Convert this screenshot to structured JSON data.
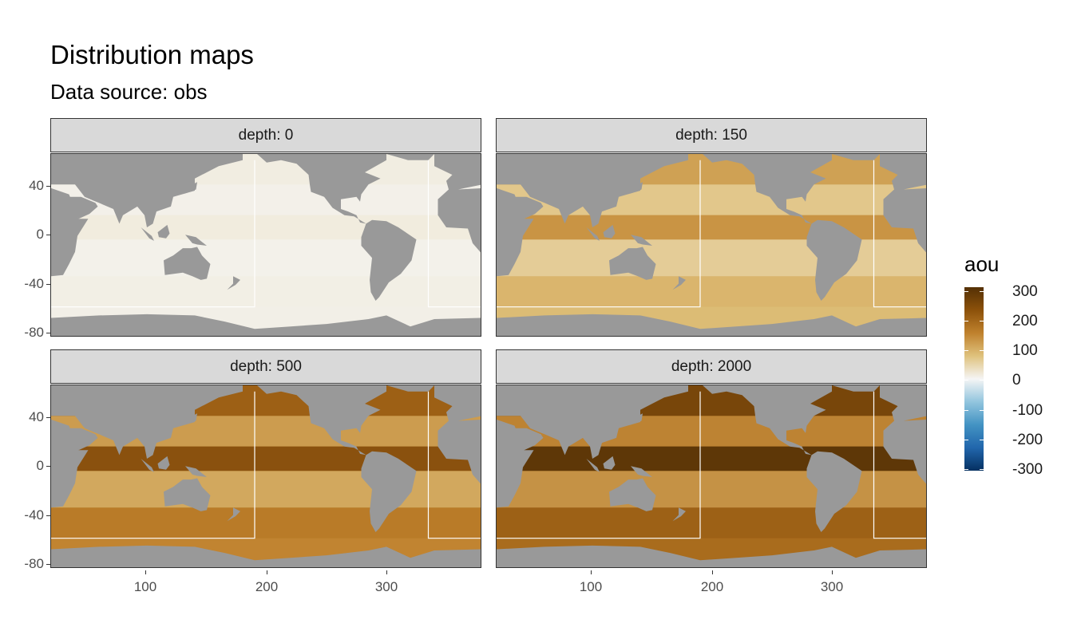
{
  "title": "Distribution maps",
  "subtitle": "Data source:  obs",
  "chart_data": {
    "type": "heatmap",
    "facet_variable": "depth",
    "panels": [
      {
        "strip": "depth: 0",
        "depth": 0,
        "typical_aou": 10
      },
      {
        "strip": "depth: 150",
        "depth": 150,
        "typical_aou": 90
      },
      {
        "strip": "depth: 500",
        "depth": 500,
        "typical_aou": 160
      },
      {
        "strip": "depth: 2000",
        "depth": 2000,
        "typical_aou": 200
      }
    ],
    "x_ticks": [
      "100",
      "200",
      "300"
    ],
    "y_ticks": [
      "40",
      "0",
      "-40",
      "-80"
    ],
    "xlim": [
      20,
      380
    ],
    "ylim": [
      -85,
      65
    ],
    "legend": {
      "title": "aou",
      "labels": [
        "300",
        "200",
        "100",
        "0",
        "-100",
        "-200",
        "-300"
      ],
      "range": [
        -300,
        300
      ],
      "colors": [
        "#053061",
        "#2166ac",
        "#4393c3",
        "#92c5de",
        "#f5f5f5",
        "#dfc27d",
        "#bf812d",
        "#8c510a",
        "#543005"
      ]
    },
    "land_color": "#999999"
  }
}
